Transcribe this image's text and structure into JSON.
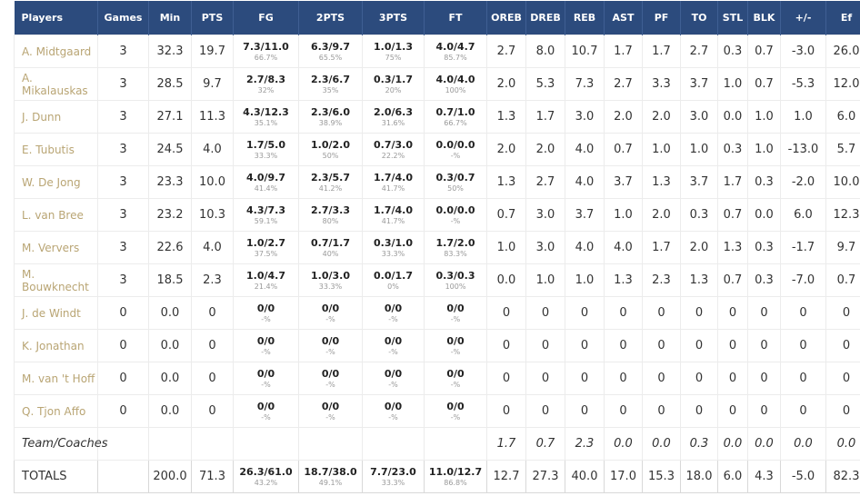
{
  "table": {
    "columns": [
      "Players",
      "Games",
      "Min",
      "PTS",
      "FG",
      "2PTS",
      "3PTS",
      "FT",
      "OREB",
      "DREB",
      "REB",
      "AST",
      "PF",
      "TO",
      "STL",
      "BLK",
      "+/-",
      "Ef"
    ],
    "rows": [
      [
        "A. Midtgaard",
        "3",
        "32.3",
        "19.7",
        [
          "7.3/11.0",
          "66.7%"
        ],
        [
          "6.3/9.7",
          "65.5%"
        ],
        [
          "1.0/1.3",
          "75%"
        ],
        [
          "4.0/4.7",
          "85.7%"
        ],
        "2.7",
        "8.0",
        "10.7",
        "1.7",
        "1.7",
        "2.7",
        "0.3",
        "0.7",
        "-3.0",
        "26.0"
      ],
      [
        "A. Mikalauskas",
        "3",
        "28.5",
        "9.7",
        [
          "2.7/8.3",
          "32%"
        ],
        [
          "2.3/6.7",
          "35%"
        ],
        [
          "0.3/1.7",
          "20%"
        ],
        [
          "4.0/4.0",
          "100%"
        ],
        "2.0",
        "5.3",
        "7.3",
        "2.7",
        "3.3",
        "3.7",
        "1.0",
        "0.7",
        "-5.3",
        "12.0"
      ],
      [
        "J. Dunn",
        "3",
        "27.1",
        "11.3",
        [
          "4.3/12.3",
          "35.1%"
        ],
        [
          "2.3/6.0",
          "38.9%"
        ],
        [
          "2.0/6.3",
          "31.6%"
        ],
        [
          "0.7/1.0",
          "66.7%"
        ],
        "1.3",
        "1.7",
        "3.0",
        "2.0",
        "2.0",
        "3.0",
        "0.0",
        "1.0",
        "1.0",
        "6.0"
      ],
      [
        "E. Tubutis",
        "3",
        "24.5",
        "4.0",
        [
          "1.7/5.0",
          "33.3%"
        ],
        [
          "1.0/2.0",
          "50%"
        ],
        [
          "0.7/3.0",
          "22.2%"
        ],
        [
          "0.0/0.0",
          "-%"
        ],
        "2.0",
        "2.0",
        "4.0",
        "0.7",
        "1.0",
        "1.0",
        "0.3",
        "1.0",
        "-13.0",
        "5.7"
      ],
      [
        "W. De Jong",
        "3",
        "23.3",
        "10.0",
        [
          "4.0/9.7",
          "41.4%"
        ],
        [
          "2.3/5.7",
          "41.2%"
        ],
        [
          "1.7/4.0",
          "41.7%"
        ],
        [
          "0.3/0.7",
          "50%"
        ],
        "1.3",
        "2.7",
        "4.0",
        "3.7",
        "1.3",
        "3.7",
        "1.7",
        "0.3",
        "-2.0",
        "10.0"
      ],
      [
        "L. van Bree",
        "3",
        "23.2",
        "10.3",
        [
          "4.3/7.3",
          "59.1%"
        ],
        [
          "2.7/3.3",
          "80%"
        ],
        [
          "1.7/4.0",
          "41.7%"
        ],
        [
          "0.0/0.0",
          "-%"
        ],
        "0.7",
        "3.0",
        "3.7",
        "1.0",
        "2.0",
        "0.3",
        "0.7",
        "0.0",
        "6.0",
        "12.3"
      ],
      [
        "M. Ververs",
        "3",
        "22.6",
        "4.0",
        [
          "1.0/2.7",
          "37.5%"
        ],
        [
          "0.7/1.7",
          "40%"
        ],
        [
          "0.3/1.0",
          "33.3%"
        ],
        [
          "1.7/2.0",
          "83.3%"
        ],
        "1.0",
        "3.0",
        "4.0",
        "4.0",
        "1.7",
        "2.0",
        "1.3",
        "0.3",
        "-1.7",
        "9.7"
      ],
      [
        "M. Bouwknecht",
        "3",
        "18.5",
        "2.3",
        [
          "1.0/4.7",
          "21.4%"
        ],
        [
          "1.0/3.0",
          "33.3%"
        ],
        [
          "0.0/1.7",
          "0%"
        ],
        [
          "0.3/0.3",
          "100%"
        ],
        "0.0",
        "1.0",
        "1.0",
        "1.3",
        "2.3",
        "1.3",
        "0.7",
        "0.3",
        "-7.0",
        "0.7"
      ],
      [
        "J. de Windt",
        "0",
        "0.0",
        "0",
        [
          "0/0",
          "-%"
        ],
        [
          "0/0",
          "-%"
        ],
        [
          "0/0",
          "-%"
        ],
        [
          "0/0",
          "-%"
        ],
        "0",
        "0",
        "0",
        "0",
        "0",
        "0",
        "0",
        "0",
        "0",
        "0"
      ],
      [
        "K. Jonathan",
        "0",
        "0.0",
        "0",
        [
          "0/0",
          "-%"
        ],
        [
          "0/0",
          "-%"
        ],
        [
          "0/0",
          "-%"
        ],
        [
          "0/0",
          "-%"
        ],
        "0",
        "0",
        "0",
        "0",
        "0",
        "0",
        "0",
        "0",
        "0",
        "0"
      ],
      [
        "M. van 't Hoff",
        "0",
        "0.0",
        "0",
        [
          "0/0",
          "-%"
        ],
        [
          "0/0",
          "-%"
        ],
        [
          "0/0",
          "-%"
        ],
        [
          "0/0",
          "-%"
        ],
        "0",
        "0",
        "0",
        "0",
        "0",
        "0",
        "0",
        "0",
        "0",
        "0"
      ],
      [
        "Q. Tjon Affo",
        "0",
        "0.0",
        "0",
        [
          "0/0",
          "-%"
        ],
        [
          "0/0",
          "-%"
        ],
        [
          "0/0",
          "-%"
        ],
        [
          "0/0",
          "-%"
        ],
        "0",
        "0",
        "0",
        "0",
        "0",
        "0",
        "0",
        "0",
        "0",
        "0"
      ]
    ],
    "team_row": {
      "label": "Team/Coaches",
      "cells": [
        "1.7",
        "0.7",
        "2.3",
        "0.0",
        "0.0",
        "0.3",
        "0.0",
        "0.0",
        "0.0",
        "0.0"
      ]
    },
    "totals": {
      "label": "TOTALS",
      "cells": [
        "200.0",
        "71.3",
        [
          "26.3/61.0",
          "43.2%"
        ],
        [
          "18.7/38.0",
          "49.1%"
        ],
        [
          "7.7/23.0",
          "33.3%"
        ],
        [
          "11.0/12.7",
          "86.8%"
        ],
        "12.7",
        "27.3",
        "40.0",
        "17.0",
        "15.3",
        "18.0",
        "6.0",
        "4.3",
        "-5.0",
        "82.3"
      ]
    }
  }
}
